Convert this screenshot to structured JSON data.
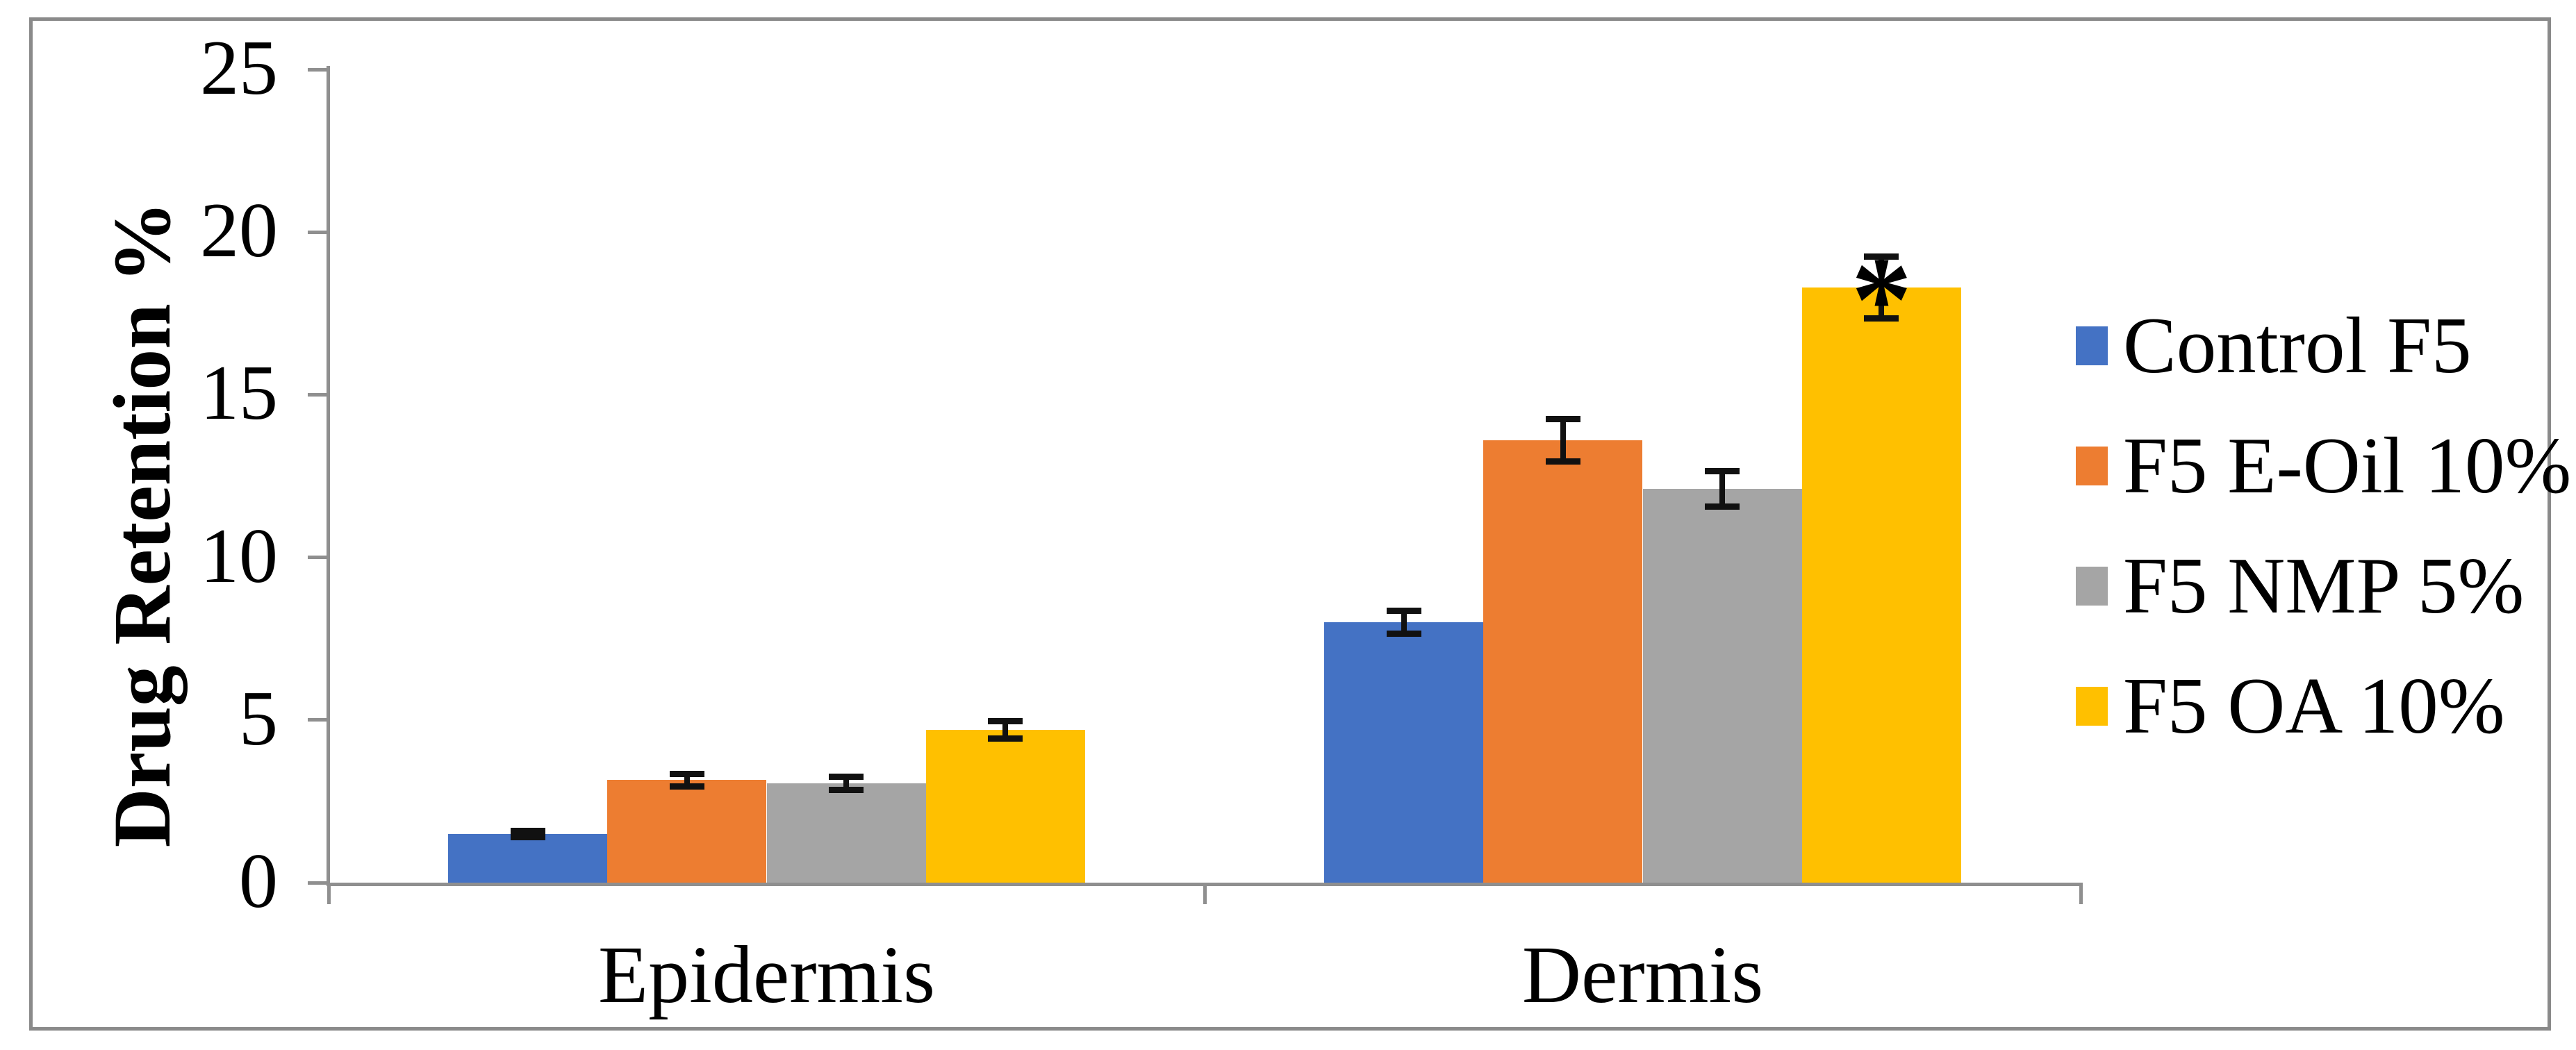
{
  "chart_data": {
    "type": "bar",
    "title": "",
    "ylabel": "Drug Retention %",
    "xlabel": "",
    "categories": [
      "Epidermis",
      "Dermis"
    ],
    "series": [
      {
        "name": "Control F5",
        "color": "#4472C4",
        "values": [
          1.5,
          8.0
        ],
        "errors": [
          0.1,
          0.35
        ]
      },
      {
        "name": "F5 E-Oil 10%",
        "color": "#ED7D31",
        "values": [
          3.15,
          13.6
        ],
        "errors": [
          0.2,
          0.65
        ]
      },
      {
        "name": "F5 NMP 5%",
        "color": "#A5A5A5",
        "values": [
          3.05,
          12.1
        ],
        "errors": [
          0.2,
          0.55
        ]
      },
      {
        "name": "F5 OA 10%",
        "color": "#FFC000",
        "values": [
          4.7,
          18.3
        ],
        "errors": [
          0.27,
          0.95
        ]
      }
    ],
    "ylim": [
      0,
      25
    ],
    "y_ticks": [
      0,
      5,
      10,
      15,
      20,
      25
    ],
    "grid": false,
    "legend_position": "right",
    "annotations": [
      {
        "text": "*",
        "category": "Dermis",
        "series": "F5 OA 10%"
      }
    ],
    "colors": {
      "axis": "#8f8f8f",
      "border": "#8a8a8a",
      "error_bar": "#111111",
      "text": "#000000",
      "background": "#ffffff"
    }
  }
}
